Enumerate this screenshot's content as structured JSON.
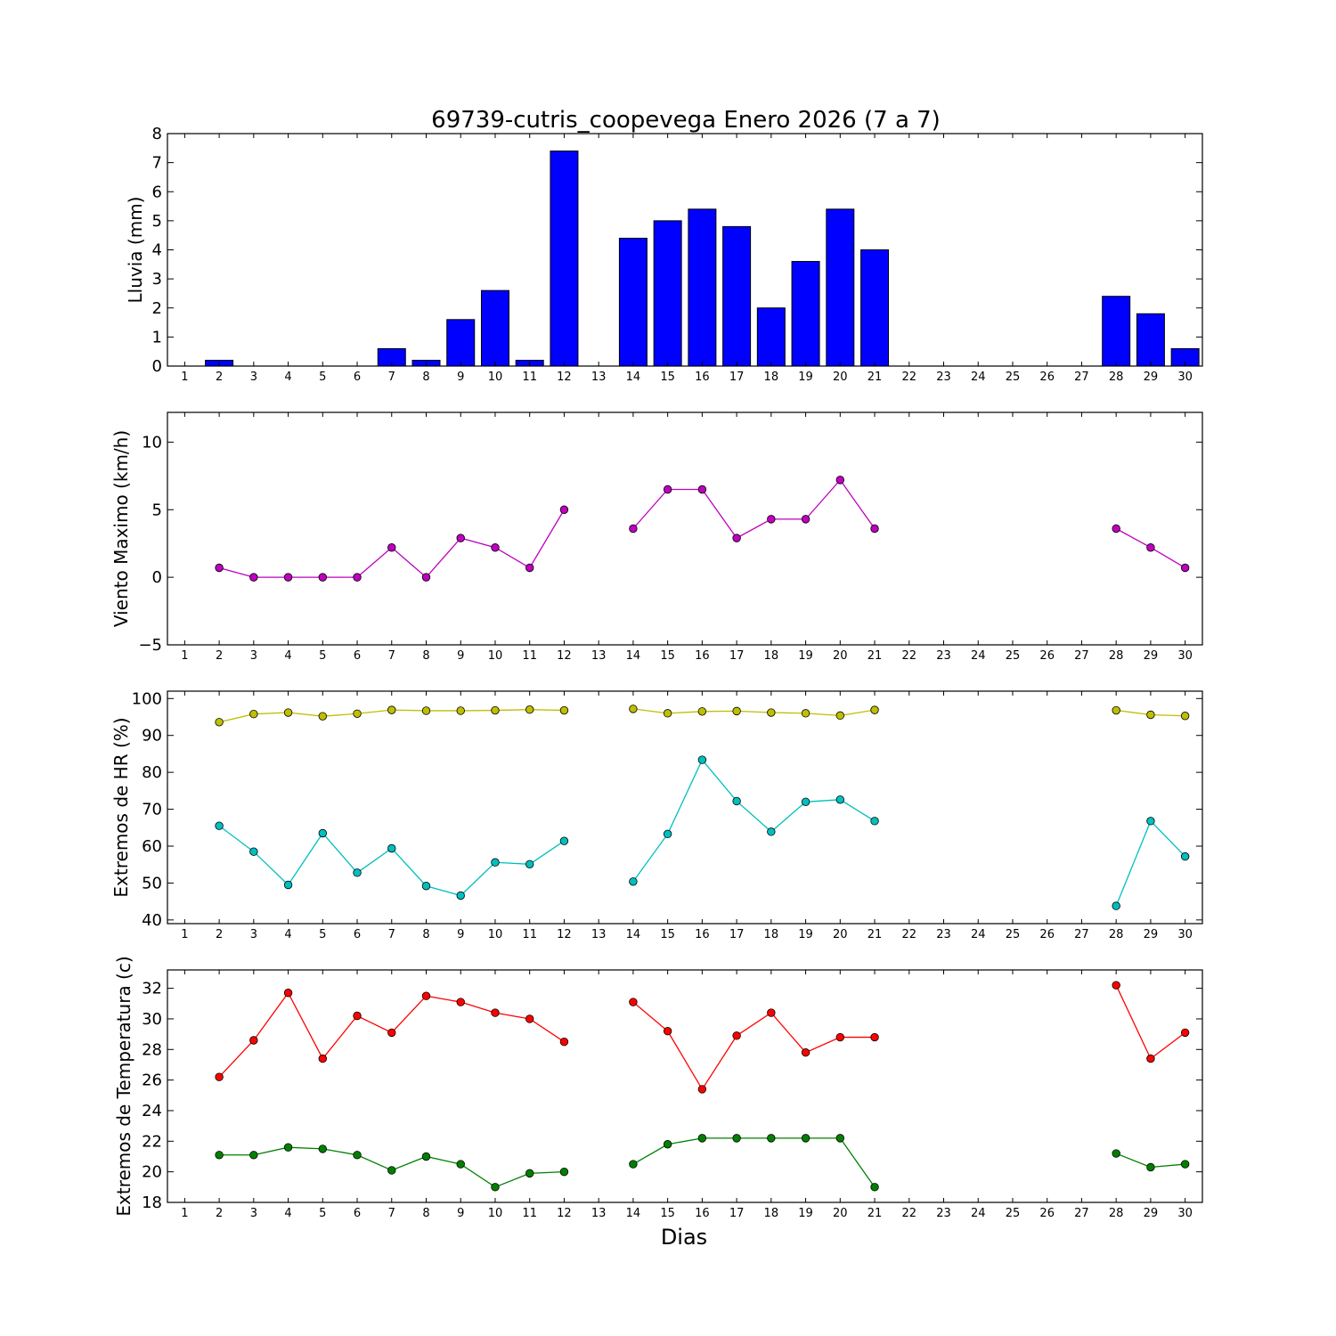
{
  "title": "69739-cutris_coopevega Enero 2026  (7 a 7)",
  "xlabel": "Dias",
  "chart_data": [
    {
      "type": "bar",
      "ylabel": "Lluvia (mm)",
      "ylim": [
        0,
        8
      ],
      "yticks": [
        0,
        1,
        2,
        3,
        4,
        5,
        6,
        7,
        8
      ],
      "xlim": [
        0.5,
        30.5
      ],
      "x": [
        1,
        2,
        3,
        4,
        5,
        6,
        7,
        8,
        9,
        10,
        11,
        12,
        13,
        14,
        15,
        16,
        17,
        18,
        19,
        20,
        21,
        22,
        23,
        24,
        25,
        26,
        27,
        28,
        29,
        30
      ],
      "series": [
        {
          "color": "#0000ff",
          "values": [
            0,
            0.2,
            0,
            0,
            0,
            0,
            0.6,
            0.2,
            1.6,
            2.6,
            0.2,
            7.4,
            null,
            4.4,
            5.0,
            5.4,
            4.8,
            2.0,
            3.6,
            5.4,
            4.0,
            0,
            0,
            0,
            0,
            0,
            0,
            2.4,
            1.8,
            0.6
          ]
        }
      ]
    },
    {
      "type": "line",
      "ylabel": "Viento Maximo (km/h)",
      "ylim": [
        -5,
        12.2
      ],
      "yticks": [
        -5,
        0,
        5,
        10
      ],
      "xlim": [
        0.5,
        30.5
      ],
      "x": [
        1,
        2,
        3,
        4,
        5,
        6,
        7,
        8,
        9,
        10,
        11,
        12,
        13,
        14,
        15,
        16,
        17,
        18,
        19,
        20,
        21,
        22,
        23,
        24,
        25,
        26,
        27,
        28,
        29,
        30
      ],
      "series": [
        {
          "color": "#bf00bf",
          "values": [
            null,
            0.7,
            0,
            0,
            0,
            0,
            2.2,
            0,
            2.9,
            2.2,
            0.7,
            5.0,
            null,
            3.6,
            6.5,
            6.5,
            2.9,
            4.3,
            4.3,
            7.2,
            3.6,
            null,
            null,
            null,
            null,
            null,
            null,
            3.6,
            2.2,
            0.7
          ]
        }
      ]
    },
    {
      "type": "line",
      "ylabel": "Extremos de HR (%)",
      "ylim": [
        39,
        102
      ],
      "yticks": [
        40,
        50,
        60,
        70,
        80,
        90,
        100
      ],
      "xlim": [
        0.5,
        30.5
      ],
      "x": [
        1,
        2,
        3,
        4,
        5,
        6,
        7,
        8,
        9,
        10,
        11,
        12,
        13,
        14,
        15,
        16,
        17,
        18,
        19,
        20,
        21,
        22,
        23,
        24,
        25,
        26,
        27,
        28,
        29,
        30
      ],
      "series": [
        {
          "color": "#bfbf00",
          "values": [
            null,
            93.6,
            95.8,
            96.2,
            95.2,
            95.9,
            96.9,
            96.7,
            96.7,
            96.8,
            97.0,
            96.8,
            null,
            97.2,
            96.0,
            96.5,
            96.6,
            96.2,
            96.0,
            95.4,
            96.9,
            null,
            null,
            null,
            null,
            null,
            null,
            96.8,
            95.6,
            95.3
          ]
        },
        {
          "color": "#00bfbf",
          "values": [
            null,
            65.5,
            58.5,
            49.5,
            63.5,
            52.8,
            59.4,
            49.2,
            46.6,
            55.6,
            55.1,
            61.4,
            null,
            50.4,
            63.3,
            83.4,
            72.2,
            63.9,
            72.0,
            72.6,
            66.8,
            null,
            null,
            null,
            null,
            null,
            null,
            43.8,
            66.8,
            57.2
          ]
        }
      ]
    },
    {
      "type": "line",
      "ylabel": "Extremos de Temperatura (c)",
      "ylim": [
        18,
        33.2
      ],
      "yticks": [
        18,
        20,
        22,
        24,
        26,
        28,
        30,
        32
      ],
      "xlim": [
        0.5,
        30.5
      ],
      "x": [
        1,
        2,
        3,
        4,
        5,
        6,
        7,
        8,
        9,
        10,
        11,
        12,
        13,
        14,
        15,
        16,
        17,
        18,
        19,
        20,
        21,
        22,
        23,
        24,
        25,
        26,
        27,
        28,
        29,
        30
      ],
      "series": [
        {
          "color": "#ff0000",
          "values": [
            null,
            26.2,
            28.6,
            31.7,
            27.4,
            30.2,
            29.1,
            31.5,
            31.1,
            30.4,
            30.0,
            28.5,
            null,
            31.1,
            29.2,
            25.4,
            28.9,
            30.4,
            27.8,
            28.8,
            28.8,
            null,
            null,
            null,
            null,
            null,
            null,
            32.2,
            27.4,
            29.1
          ]
        },
        {
          "color": "#008000",
          "values": [
            null,
            21.1,
            21.1,
            21.6,
            21.5,
            21.1,
            20.1,
            21.0,
            20.5,
            19.0,
            19.9,
            20.0,
            null,
            20.5,
            21.8,
            22.2,
            22.2,
            22.2,
            22.2,
            22.2,
            19.0,
            null,
            null,
            null,
            null,
            null,
            null,
            21.2,
            20.3,
            20.5
          ]
        }
      ]
    }
  ]
}
